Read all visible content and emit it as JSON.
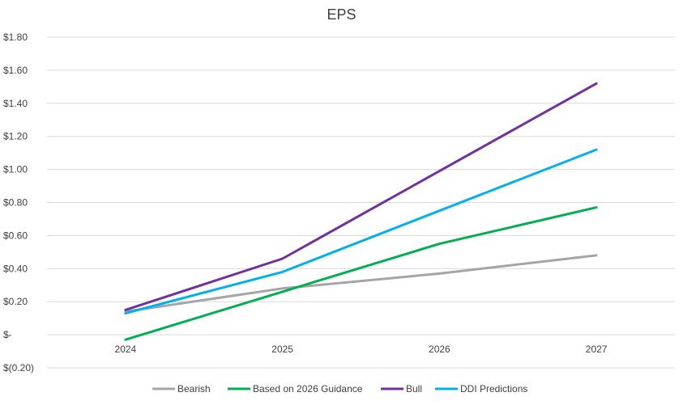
{
  "chart_data": {
    "type": "line",
    "title": "EPS",
    "xlabel": "",
    "ylabel": "",
    "x": [
      "2024",
      "2025",
      "2026",
      "2027"
    ],
    "ylim": [
      -0.2,
      1.8
    ],
    "yticks": [
      -0.2,
      0,
      0.2,
      0.4,
      0.6,
      0.8,
      1.0,
      1.2,
      1.4,
      1.6,
      1.8
    ],
    "ytick_labels": [
      "$(0.20)",
      "$-",
      "$0.20",
      "$0.40",
      "$0.60",
      "$0.80",
      "$1.00",
      "$1.20",
      "$1.40",
      "$1.60",
      "$1.80"
    ],
    "grid": true,
    "legend_position": "bottom",
    "series": [
      {
        "name": "Bearish",
        "color": "#a5a5a5",
        "values": [
          0.14,
          0.28,
          0.37,
          0.48
        ]
      },
      {
        "name": "Based on 2026 Guidance",
        "color": "#00b050",
        "values": [
          -0.03,
          0.26,
          0.55,
          0.77
        ]
      },
      {
        "name": "Bull",
        "color": "#7030a0",
        "values": [
          0.15,
          0.46,
          0.99,
          1.52
        ]
      },
      {
        "name": "DDI Predictions",
        "color": "#00b0f0",
        "values": [
          0.13,
          0.38,
          0.75,
          1.12
        ]
      }
    ]
  }
}
